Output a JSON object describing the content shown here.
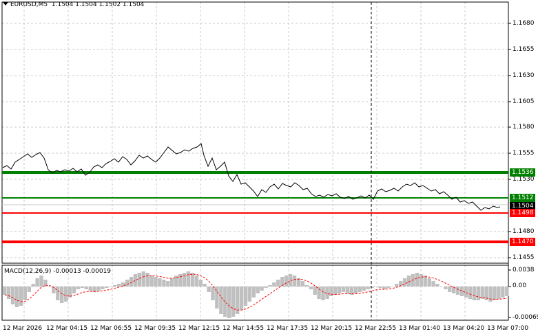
{
  "header": {
    "symbol": "EURUSD,M5",
    "ohlc": "1.1504 1.1504 1.1502 1.1504"
  },
  "macd": {
    "label": "MACD(12,26,9) -0.00013 -0.00019",
    "axis_labels": [
      "0.0038",
      "0.00",
      "-0.00069"
    ]
  },
  "price_axis": [
    "1.1680",
    "1.1655",
    "1.1630",
    "1.1605",
    "1.1580",
    "1.1555",
    "1.1530",
    "1.1480",
    "1.1455"
  ],
  "levels": [
    {
      "price": "1.1536",
      "color": "#008000",
      "style": "thick"
    },
    {
      "price": "1.1512",
      "color": "#008000",
      "style": "thin"
    },
    {
      "price": "1.1504",
      "color": "#000000",
      "style": "current"
    },
    {
      "price": "1.1498",
      "color": "#ff0000",
      "style": "thin"
    },
    {
      "price": "1.1470",
      "color": "#ff0000",
      "style": "thick"
    }
  ],
  "time_axis": [
    "12 Mar 2026",
    "12 Mar 04:15",
    "12 Mar 06:55",
    "12 Mar 09:35",
    "12 Mar 12:15",
    "12 Mar 14:55",
    "12 Mar 17:35",
    "12 Mar 20:15",
    "12 Mar 22:55",
    "13 Mar 01:40",
    "13 Mar 04:20",
    "13 Mar 07:00"
  ],
  "colors": {
    "grid": "#c0c0c0",
    "price_line": "#000000",
    "histogram": "#c0c0c0",
    "signal": "#ff0000",
    "support_resistance_green": "#008000",
    "support_resistance_red": "#ff0000"
  }
}
